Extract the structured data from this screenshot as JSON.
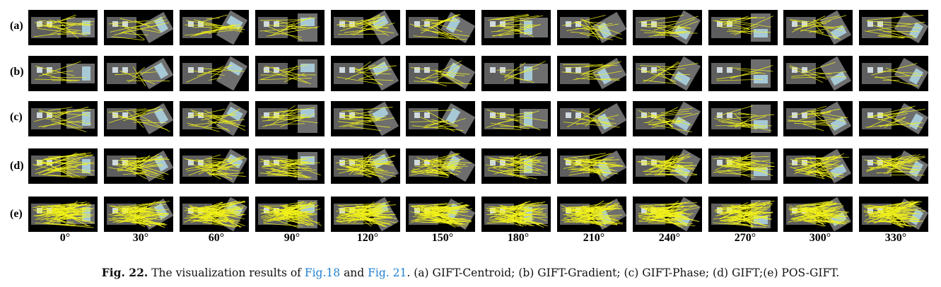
{
  "figure": {
    "rows": [
      {
        "label": "(a)"
      },
      {
        "label": "(b)"
      },
      {
        "label": "(c)"
      },
      {
        "label": "(d)"
      },
      {
        "label": "(e)"
      }
    ],
    "angles": [
      "0°",
      "30°",
      "60°",
      "90°",
      "120°",
      "150°",
      "180°",
      "210°",
      "240°",
      "270°",
      "300°",
      "330°"
    ],
    "match_line_color": "#f2f21a",
    "panel_background": "#000000",
    "building_gray": "#6f6f6f"
  },
  "caption": {
    "fig_number": "Fig. 22.",
    "text_1": " The visualization results of ",
    "ref_1": "Fig.18",
    "text_2": " and ",
    "ref_2": "Fig. 21",
    "text_3": ". (a) GIFT-Centroid; (b) GIFT-Gradient; (c) GIFT-Phase; (d) GIFT;(e) POS-GIFT.",
    "ref_color": "#1f7fd1"
  }
}
